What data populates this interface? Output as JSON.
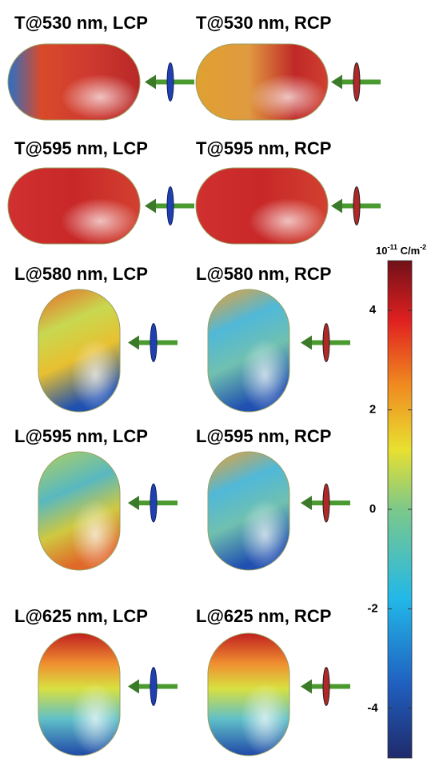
{
  "panels": [
    {
      "label": "T@530 nm, LCP"
    },
    {
      "label": "T@530 nm, RCP"
    },
    {
      "label": "T@595 nm, LCP"
    },
    {
      "label": "T@595 nm, RCP"
    },
    {
      "label": "L@580 nm, LCP"
    },
    {
      "label": "L@580 nm, RCP"
    },
    {
      "label": "L@595 nm, LCP"
    },
    {
      "label": "L@595 nm, RCP"
    },
    {
      "label": "L@625 nm, LCP"
    },
    {
      "label": "L@625 nm, RCP"
    }
  ],
  "colorbar": {
    "unit": {
      "base": "10",
      "exponent": "-11",
      "unit": "C/m",
      "unit_exponent": "-2"
    },
    "lim": [
      -5,
      5
    ],
    "ticks": [
      -4,
      -2,
      0,
      2,
      4
    ]
  }
}
